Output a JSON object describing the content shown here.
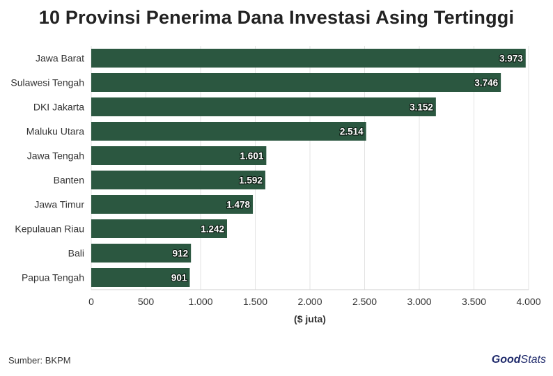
{
  "chart_data": {
    "type": "bar",
    "orientation": "horizontal",
    "title": "10 Provinsi Penerima Dana Investasi Asing Tertinggi",
    "xlabel": "($ juta)",
    "ylabel": "",
    "categories": [
      "Jawa Barat",
      "Sulawesi Tengah",
      "DKI Jakarta",
      "Maluku Utara",
      "Jawa Tengah",
      "Banten",
      "Jawa Timur",
      "Kepulauan Riau",
      "Bali",
      "Papua Tengah"
    ],
    "values": [
      3973,
      3746,
      3152,
      2514,
      1601,
      1592,
      1478,
      1242,
      912,
      901
    ],
    "value_labels": [
      "3.973",
      "3.746",
      "3.152",
      "2.514",
      "1.601",
      "1.592",
      "1.478",
      "1.242",
      "912",
      "901"
    ],
    "xlim": [
      0,
      4000
    ],
    "xticks": [
      0,
      500,
      1000,
      1500,
      2000,
      2500,
      3000,
      3500,
      4000
    ],
    "xtick_labels": [
      "0",
      "500",
      "1.000",
      "1.500",
      "2.000",
      "2.500",
      "3.000",
      "3.500",
      "4.000"
    ],
    "grid": true,
    "bar_color": "#2b5740"
  },
  "footer": {
    "source": "Sumber: BKPM",
    "brand_part1": "Good",
    "brand_part2": "Stats"
  }
}
